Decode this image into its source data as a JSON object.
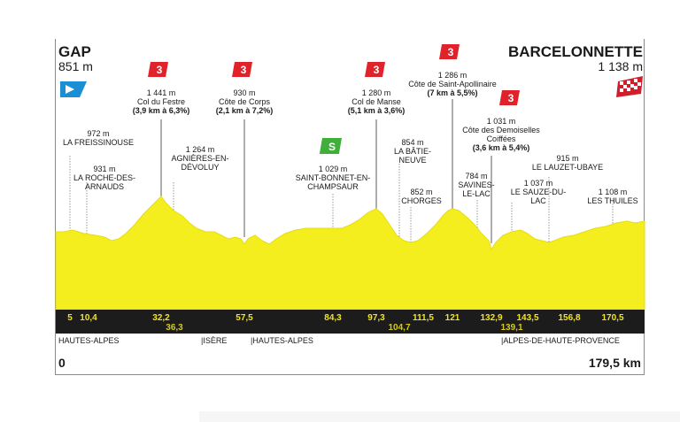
{
  "start": {
    "name": "GAP",
    "altitude": "851 m"
  },
  "finish": {
    "name": "BARCELONNETTE",
    "altitude": "1 138 m"
  },
  "distance": {
    "start": "0",
    "end": "179,5 km"
  },
  "climbs": [
    {
      "category": "3",
      "altitude": "1 441 m",
      "name": "Col du Festre",
      "detail": "(3,9 km à 6,3%)"
    },
    {
      "category": "3",
      "altitude": "930 m",
      "name": "Côte de Corps",
      "detail": "(2,1 km à 7,2%)"
    },
    {
      "category": "3",
      "altitude": "1 280 m",
      "name": "Col de Manse",
      "detail": "(5,1 km à 3,6%)"
    },
    {
      "category": "3",
      "altitude": "1 286 m",
      "name": "Côte de Saint-Apollinaire",
      "detail": "(7 km à 5,5%)"
    },
    {
      "category": "3",
      "altitude": "1 031 m",
      "name": "Côte des Demoiselles Coiffées",
      "detail": "(3,6 km à 5,4%)"
    }
  ],
  "sprint": {
    "symbol": "S",
    "altitude": "1 029 m",
    "name": "SAINT-BONNET-EN-CHAMPSAUR"
  },
  "places": [
    {
      "altitude": "972 m",
      "name": "LA FREISSINOUSE"
    },
    {
      "altitude": "931 m",
      "name": "LA ROCHE-DES-ARNAUDS"
    },
    {
      "altitude": "1 264 m",
      "name": "AGNIÈRES-EN-DÉVOLUY"
    },
    {
      "altitude": "854 m",
      "name": "LA BÂTIE-NEUVE"
    },
    {
      "altitude": "852 m",
      "name": "CHORGES"
    },
    {
      "altitude": "784 m",
      "name": "SAVINES-LE-LAC"
    },
    {
      "altitude": "1 037 m",
      "name": "LE SAUZE-DU-LAC"
    },
    {
      "altitude": "915 m",
      "name": "LE LAUZET-UBAYE"
    },
    {
      "altitude": "1 108 m",
      "name": "LES THUILES"
    }
  ],
  "km_markers": [
    "5",
    "10,4",
    "32,2",
    "36,3",
    "57,5",
    "84,3",
    "97,3",
    "104,7",
    "111,5",
    "121",
    "132,9",
    "139,1",
    "143,5",
    "156,8",
    "170,5"
  ],
  "regions": [
    "HAUTES-ALPES",
    "ISÈRE",
    "HAUTES-ALPES",
    "ALPES-DE-HAUTE-PROVENCE"
  ],
  "colors": {
    "profile": "#f5ee1f",
    "profile_edge": "#e6dc10",
    "km_bar": "#1c1c1c",
    "km_text": "#f2e51c",
    "climb_badge": "#e0232a",
    "sprint_badge": "#3fae3a",
    "start_flag": "#1a8fd6"
  },
  "icons": {
    "start": "start-flag-icon",
    "finish": "checkered-flag-icon",
    "climb": "mountain-category-badge-icon",
    "sprint": "sprint-badge-icon"
  }
}
